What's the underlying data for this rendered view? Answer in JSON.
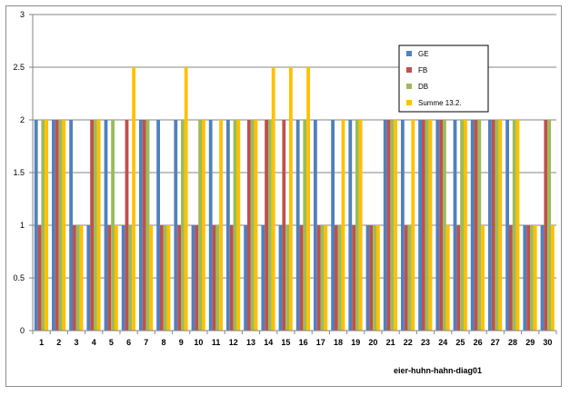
{
  "chart_data": {
    "type": "bar",
    "title": "",
    "caption": "eier-huhn-hahn-diag01",
    "xlabel": "",
    "ylabel": "",
    "ylim": [
      0,
      3
    ],
    "yticks": [
      "0",
      "0.5",
      "1",
      "1.5",
      "2",
      "2.5",
      "3"
    ],
    "grid": true,
    "legend_position": "top-right",
    "categories": [
      "1",
      "2",
      "3",
      "4",
      "5",
      "6",
      "7",
      "8",
      "9",
      "10",
      "11",
      "12",
      "13",
      "14",
      "15",
      "16",
      "17",
      "18",
      "19",
      "20",
      "21",
      "22",
      "23",
      "24",
      "25",
      "26",
      "27",
      "28",
      "29",
      "30"
    ],
    "series": [
      {
        "name": "GE",
        "color": "#4f81bd",
        "values": [
          2,
          2,
          2,
          1,
          2,
          1,
          2,
          2,
          2,
          1,
          2,
          2,
          1,
          1,
          1,
          2,
          2,
          2,
          2,
          1,
          2,
          2,
          2,
          2,
          2,
          2,
          2,
          2,
          1,
          1
        ]
      },
      {
        "name": "FB",
        "color": "#c0504d",
        "values": [
          1,
          2,
          1,
          2,
          1,
          2,
          2,
          1,
          1,
          1,
          1,
          1,
          2,
          2,
          2,
          1,
          1,
          1,
          1,
          1,
          2,
          1,
          2,
          2,
          1,
          2,
          2,
          1,
          1,
          2
        ]
      },
      {
        "name": "DB",
        "color": "#9bbb59",
        "values": [
          2,
          2,
          1,
          2,
          2,
          1,
          2,
          1,
          2,
          2,
          1,
          2,
          2,
          2,
          1,
          2,
          1,
          1,
          2,
          1,
          2,
          1,
          2,
          2,
          2,
          2,
          2,
          2,
          1,
          2
        ]
      },
      {
        "name": "Summe 13.2.",
        "color": "#ffc000",
        "values": [
          2,
          2,
          1,
          2,
          1,
          2.5,
          1,
          1,
          2.5,
          2,
          2,
          2,
          2,
          2.5,
          2.5,
          2.5,
          1,
          2,
          2,
          1,
          2,
          2,
          2,
          1,
          2,
          1,
          2,
          2,
          1,
          1
        ]
      }
    ]
  }
}
